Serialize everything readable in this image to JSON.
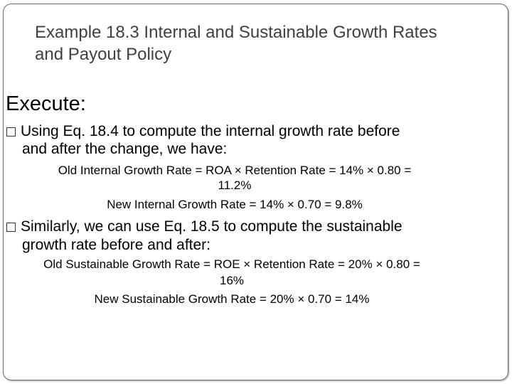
{
  "slide": {
    "title_line1": "Example 18.3 Internal and Sustainable Growth Rates",
    "title_line2": "and Payout Policy",
    "heading": "Execute:",
    "bullet1": {
      "line1": "Using Eq. 18.4 to compute the internal growth rate before",
      "line2": "and after the change, we have:"
    },
    "eq1": {
      "line1": "Old Internal Growth Rate = ROA × Retention Rate = 14% × 0.80 =",
      "line2": "11.2%",
      "line3": "New Internal Growth Rate = 14% × 0.70 = 9.8%"
    },
    "bullet2": {
      "line1": "Similarly, we can use Eq. 18.5 to compute the sustainable",
      "line2": "growth rate before and after:"
    },
    "eq2": {
      "line1": "Old Sustainable Growth Rate = ROE × Retention Rate = 20% × 0.80 =",
      "line2": "16%",
      "line3": "New Sustainable Growth Rate = 20% × 0.70 = 14%"
    }
  }
}
